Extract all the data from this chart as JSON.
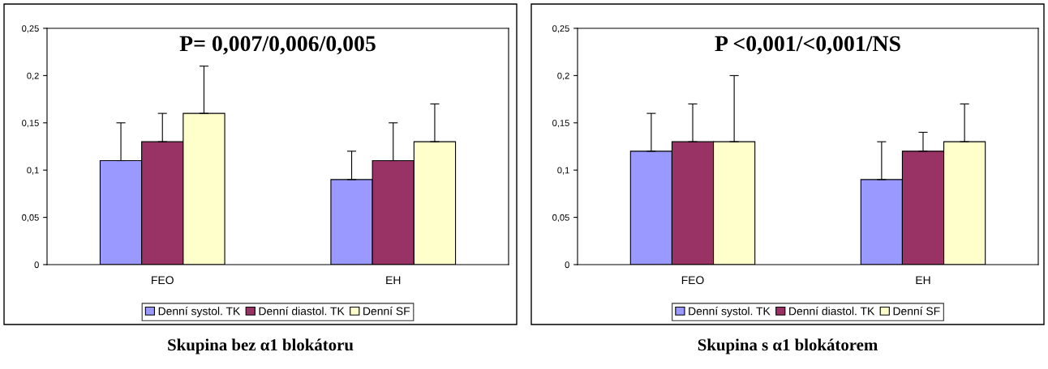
{
  "chart_data": [
    {
      "type": "bar",
      "title": "P= 0,007/0,006/0,005",
      "categories": [
        "FEO",
        "EH"
      ],
      "series": [
        {
          "name": "Denní systol. TK",
          "color": "#9999ff",
          "values": [
            0.11,
            0.09
          ],
          "errors": [
            [
              0.11,
              0.15
            ],
            [
              0.09,
              0.12
            ]
          ]
        },
        {
          "name": "Denní diastol. TK",
          "color": "#993366",
          "values": [
            0.13,
            0.11
          ],
          "errors": [
            [
              0.13,
              0.16
            ],
            [
              0.11,
              0.15
            ]
          ]
        },
        {
          "name": "Denní SF",
          "color": "#ffffcc",
          "values": [
            0.16,
            0.13
          ],
          "errors": [
            [
              0.16,
              0.21
            ],
            [
              0.13,
              0.17
            ]
          ]
        }
      ],
      "ylim": [
        0,
        0.25
      ],
      "yticks": [
        {
          "value": 0,
          "label": "0"
        },
        {
          "value": 0.05,
          "label": "0,05"
        },
        {
          "value": 0.1,
          "label": "0,1"
        },
        {
          "value": 0.15,
          "label": "0,15"
        },
        {
          "value": 0.2,
          "label": "0,2"
        },
        {
          "value": 0.25,
          "label": "0,25"
        }
      ],
      "grid": false,
      "legend": "bottom",
      "annotations": [
        "Skupina bez α1 blokátoru"
      ]
    },
    {
      "type": "bar",
      "title": "P <0,001/<0,001/NS",
      "categories": [
        "FEO",
        "EH"
      ],
      "series": [
        {
          "name": "Denní systol. TK",
          "color": "#9999ff",
          "values": [
            0.12,
            0.09
          ],
          "errors": [
            [
              0.12,
              0.16
            ],
            [
              0.09,
              0.13
            ]
          ]
        },
        {
          "name": "Denní diastol. TK",
          "color": "#993366",
          "values": [
            0.13,
            0.12
          ],
          "errors": [
            [
              0.13,
              0.17
            ],
            [
              0.12,
              0.14
            ]
          ]
        },
        {
          "name": "Denní SF",
          "color": "#ffffcc",
          "values": [
            0.13,
            0.13
          ],
          "errors": [
            [
              0.13,
              0.2
            ],
            [
              0.13,
              0.17
            ]
          ]
        }
      ],
      "ylim": [
        0,
        0.25
      ],
      "yticks": [
        {
          "value": 0,
          "label": "0"
        },
        {
          "value": 0.05,
          "label": "0,05"
        },
        {
          "value": 0.1,
          "label": "0,1"
        },
        {
          "value": 0.15,
          "label": "0,15"
        },
        {
          "value": 0.2,
          "label": "0,2"
        },
        {
          "value": 0.25,
          "label": "0,25"
        }
      ],
      "grid": false,
      "legend": "bottom",
      "annotations": [
        "Skupina s α1 blokátorem"
      ]
    }
  ]
}
